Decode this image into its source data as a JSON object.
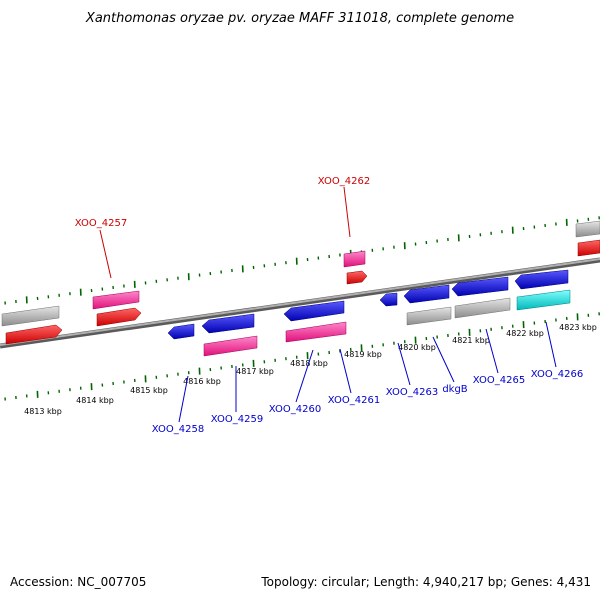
{
  "title": "Xanthomonas oryzae pv. oryzae MAFF 311018, complete genome",
  "footer": {
    "accession": "Accession: NC_007705",
    "topology": "Topology: circular; Length: 4,940,217 bp; Genes: 4,431"
  },
  "colors": {
    "plus_label": "#cc0000",
    "minus_label": "#0000cc",
    "tick": "#006400",
    "backbone": "#808080",
    "red": "#ff0000",
    "pink": "#ff3399",
    "blue": "#1a1ae6",
    "gray": "#c0c0c0",
    "cyan": "#00e5e5"
  },
  "ruler_labels": [
    "4813 kbp",
    "4814 kbp",
    "4815 kbp",
    "4816 kbp",
    "4817 kbp",
    "4818 kbp",
    "4819 kbp",
    "4820 kbp",
    "4821 kbp",
    "4822 kbp",
    "4823 kbp"
  ],
  "gene_labels": [
    {
      "name": "XOO_4257",
      "strand": "plus"
    },
    {
      "name": "XOO_4262",
      "strand": "plus"
    },
    {
      "name": "XOO_4258",
      "strand": "minus"
    },
    {
      "name": "XOO_4259",
      "strand": "minus"
    },
    {
      "name": "XOO_4260",
      "strand": "minus"
    },
    {
      "name": "XOO_4261",
      "strand": "minus"
    },
    {
      "name": "XOO_4263",
      "strand": "minus"
    },
    {
      "name": "dkgB",
      "strand": "minus"
    },
    {
      "name": "XOO_4265",
      "strand": "minus"
    },
    {
      "name": "XOO_4266",
      "strand": "minus"
    }
  ]
}
